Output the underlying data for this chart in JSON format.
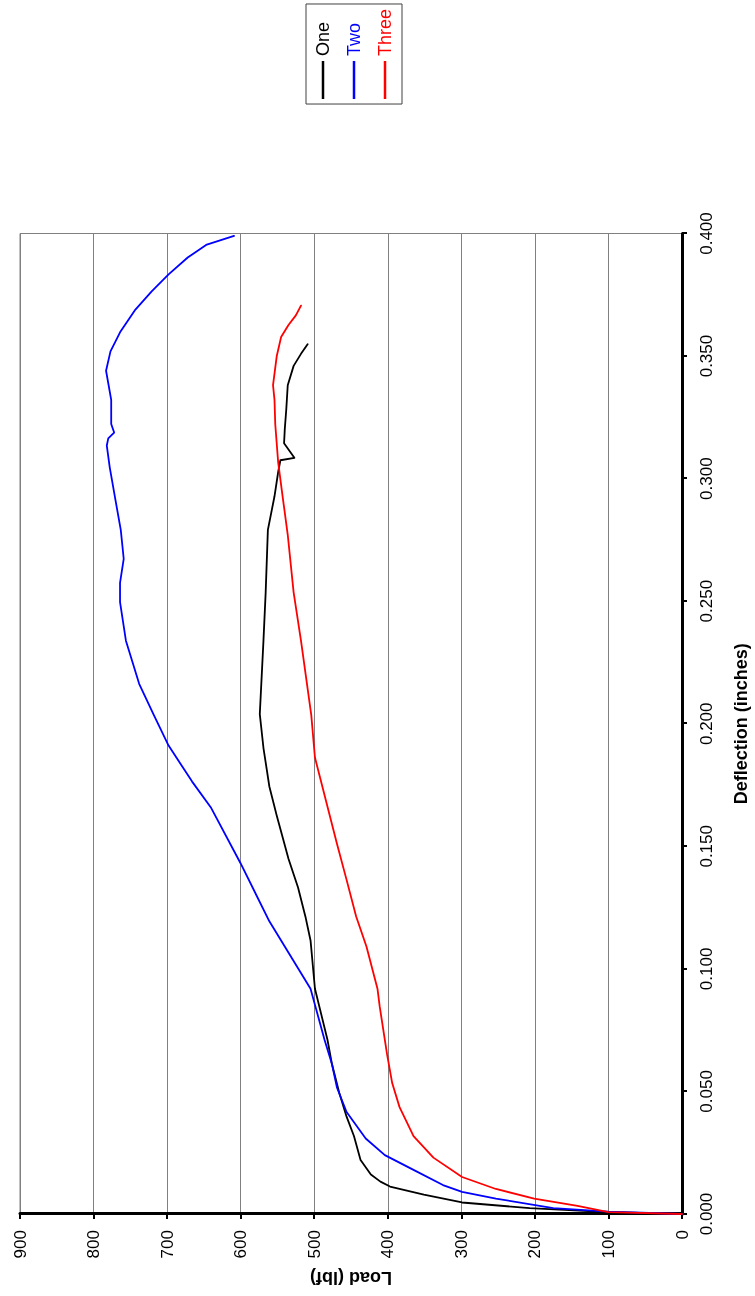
{
  "chart_data": {
    "type": "line",
    "xlabel": "Load (lbf)",
    "ylabel": "Deflection (inches)",
    "series": [
      {
        "name": "One",
        "color": "#000000",
        "x": [
          0,
          100,
          207,
          299,
          351,
          397,
          410,
          423,
          437,
          446,
          456,
          466,
          476,
          482,
          499,
          505,
          512,
          522,
          535,
          551,
          561,
          569,
          574,
          569,
          566,
          563,
          554,
          549,
          546,
          527,
          541,
          540,
          538,
          536,
          528,
          518,
          509
        ],
        "values": [
          0,
          0.0008,
          0.0024,
          0.0047,
          0.0079,
          0.0112,
          0.0132,
          0.0161,
          0.022,
          0.0318,
          0.0397,
          0.0495,
          0.0613,
          0.0711,
          0.0919,
          0.1116,
          0.1214,
          0.1332,
          0.1449,
          0.1626,
          0.1744,
          0.1901,
          0.2039,
          0.2339,
          0.2536,
          0.2791,
          0.2928,
          0.3027,
          0.3075,
          0.3085,
          0.3144,
          0.3203,
          0.3282,
          0.3381,
          0.346,
          0.3509,
          0.3548
        ]
      },
      {
        "name": "Two",
        "color": "#0000ff",
        "x": [
          0,
          100,
          175,
          253,
          299,
          325,
          365,
          404,
          430,
          456,
          469,
          476,
          486,
          505,
          561,
          600,
          640,
          666,
          698,
          718,
          738,
          756,
          764,
          764,
          759,
          763,
          770,
          778,
          782,
          780,
          772,
          776,
          776,
          783,
          777,
          764,
          744,
          721,
          698,
          672,
          646,
          609
        ],
        "values": [
          0,
          0.001,
          0.0024,
          0.0063,
          0.009,
          0.0118,
          0.018,
          0.024,
          0.0308,
          0.0416,
          0.0515,
          0.0613,
          0.0711,
          0.0919,
          0.1194,
          0.143,
          0.1656,
          0.1764,
          0.1911,
          0.2035,
          0.2163,
          0.2339,
          0.2496,
          0.2575,
          0.2673,
          0.2791,
          0.2909,
          0.3046,
          0.3135,
          0.3164,
          0.3188,
          0.3223,
          0.3321,
          0.344,
          0.3519,
          0.3597,
          0.3686,
          0.3764,
          0.3833,
          0.3902,
          0.3955,
          0.399
        ]
      },
      {
        "name": "Three",
        "color": "#ff0000",
        "x": [
          0,
          100,
          142,
          201,
          253,
          299,
          338,
          365,
          384,
          394,
          401,
          411,
          414,
          429,
          443,
          456,
          469,
          499,
          504,
          518,
          528,
          536,
          543,
          549,
          553,
          554,
          556,
          551,
          545,
          535,
          525,
          518
        ],
        "values": [
          0,
          0.0008,
          0.0033,
          0.0063,
          0.0102,
          0.0151,
          0.023,
          0.0318,
          0.0436,
          0.0534,
          0.0652,
          0.0847,
          0.0919,
          0.1091,
          0.1214,
          0.1363,
          0.1509,
          0.1862,
          0.2035,
          0.2339,
          0.2536,
          0.2771,
          0.2928,
          0.3066,
          0.3223,
          0.3321,
          0.3381,
          0.3499,
          0.3578,
          0.3627,
          0.3666,
          0.3706
        ]
      }
    ],
    "xlim": [
      900,
      0
    ],
    "xticks": [
      900,
      800,
      700,
      600,
      500,
      400,
      300,
      200,
      100,
      0
    ],
    "ylim": [
      0,
      0.4
    ],
    "yticks": [
      {
        "value": 0,
        "label": "0.000"
      },
      {
        "value": 0.05,
        "label": "0.050"
      },
      {
        "value": 0.1,
        "label": "0.100"
      },
      {
        "value": 0.15,
        "label": "0.150"
      },
      {
        "value": 0.2,
        "label": "0.200"
      },
      {
        "value": 0.25,
        "label": "0.250"
      },
      {
        "value": 0.3,
        "label": "0.300"
      },
      {
        "value": 0.35,
        "label": "0.350"
      },
      {
        "value": 0.4,
        "label": "0.400"
      }
    ],
    "grid": "x",
    "legend": "top",
    "marker": "none"
  }
}
